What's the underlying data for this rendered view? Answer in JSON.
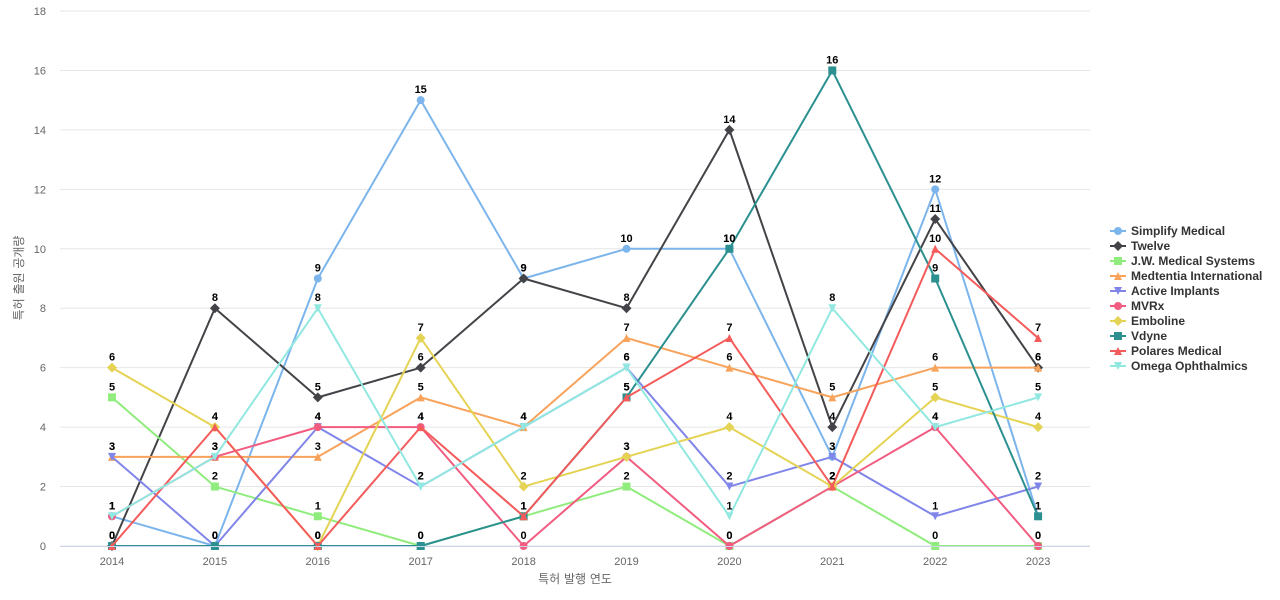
{
  "chart_data": {
    "type": "line",
    "xlabel": "특허 발행 연도",
    "ylabel": "특허 출원 공개량",
    "ylim": [
      0,
      18
    ],
    "y_ticks": [
      0,
      2,
      4,
      6,
      8,
      10,
      12,
      14,
      16,
      18
    ],
    "x": [
      "2014",
      "2015",
      "2016",
      "2017",
      "2018",
      "2019",
      "2020",
      "2021",
      "2022",
      "2023"
    ],
    "grid": true,
    "legend_position": "right",
    "series": [
      {
        "name": "Simplify Medical",
        "color": "#7cb5ec",
        "marker": "circle",
        "values": [
          1,
          0,
          9,
          15,
          9,
          10,
          10,
          3,
          12,
          1
        ]
      },
      {
        "name": "Twelve",
        "color": "#434348",
        "marker": "diamond",
        "values": [
          0,
          8,
          5,
          6,
          9,
          8,
          14,
          4,
          11,
          6
        ]
      },
      {
        "name": "J.W. Medical Systems",
        "color": "#90ed7d",
        "marker": "square",
        "values": [
          5,
          2,
          1,
          0,
          1,
          2,
          0,
          2,
          0,
          0
        ]
      },
      {
        "name": "Medtentia International",
        "color": "#f7a35c",
        "marker": "triangle",
        "values": [
          3,
          3,
          3,
          5,
          4,
          7,
          6,
          5,
          6,
          6
        ]
      },
      {
        "name": "Active Implants",
        "color": "#8085e9",
        "marker": "triangle-down",
        "values": [
          3,
          0,
          4,
          2,
          4,
          6,
          2,
          3,
          1,
          2
        ]
      },
      {
        "name": "MVRx",
        "color": "#f15c80",
        "marker": "circle",
        "values": [
          1,
          3,
          4,
          4,
          0,
          3,
          0,
          2,
          4,
          0
        ]
      },
      {
        "name": "Emboline",
        "color": "#e4d354",
        "marker": "diamond",
        "values": [
          6,
          4,
          0,
          7,
          2,
          3,
          4,
          2,
          5,
          4
        ]
      },
      {
        "name": "Vdyne",
        "color": "#2b908f",
        "marker": "square",
        "values": [
          0,
          0,
          0,
          0,
          1,
          5,
          10,
          16,
          9,
          1
        ]
      },
      {
        "name": "Polares Medical",
        "color": "#f45b5b",
        "marker": "triangle",
        "values": [
          0,
          4,
          0,
          4,
          1,
          5,
          7,
          2,
          10,
          7
        ]
      },
      {
        "name": "Omega Ophthalmics",
        "color": "#91e8e1",
        "marker": "triangle-down",
        "values": [
          1,
          3,
          8,
          2,
          4,
          6,
          1,
          8,
          4,
          5
        ]
      }
    ]
  }
}
